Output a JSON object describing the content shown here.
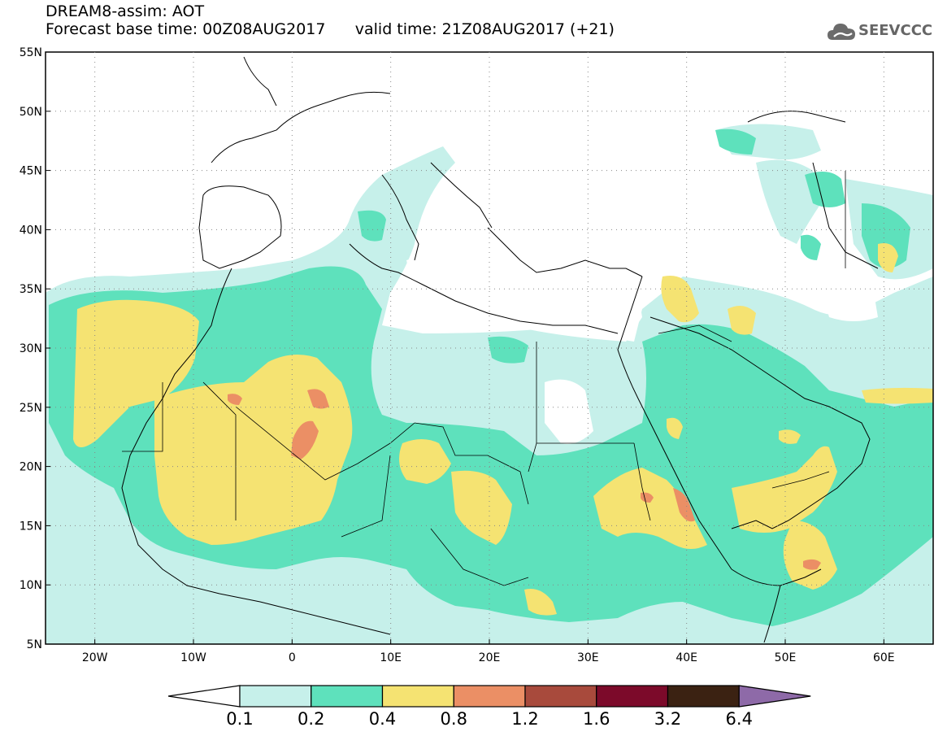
{
  "header": {
    "title": "DREAM8-assim: AOT",
    "base_time_label": "Forecast base time: 00Z08AUG2017",
    "valid_time_label": "valid time: 21Z08AUG2017 (+21)"
  },
  "logo": {
    "text": "SEEVCCC",
    "icon": "cloud-icon"
  },
  "map": {
    "lat_labels": [
      "55N",
      "50N",
      "45N",
      "40N",
      "35N",
      "30N",
      "25N",
      "20N",
      "15N",
      "10N",
      "5N"
    ],
    "lon_labels": [
      "20W",
      "10W",
      "0",
      "10E",
      "20E",
      "30E",
      "40E",
      "50E",
      "60E"
    ],
    "lat_range": [
      5,
      55
    ],
    "lon_range": [
      -25,
      65
    ],
    "grid": "dotted"
  },
  "colorbar": {
    "colors": [
      "#ffffff",
      "#c6f0ea",
      "#5ee1bc",
      "#f5e372",
      "#eb8f65",
      "#a84a3c",
      "#7c0a2a",
      "#3b2212",
      "#8e6aa8"
    ],
    "tick_labels": [
      "0.1",
      "0.2",
      "0.4",
      "0.8",
      "1.2",
      "1.6",
      "3.2",
      "6.4"
    ]
  }
}
